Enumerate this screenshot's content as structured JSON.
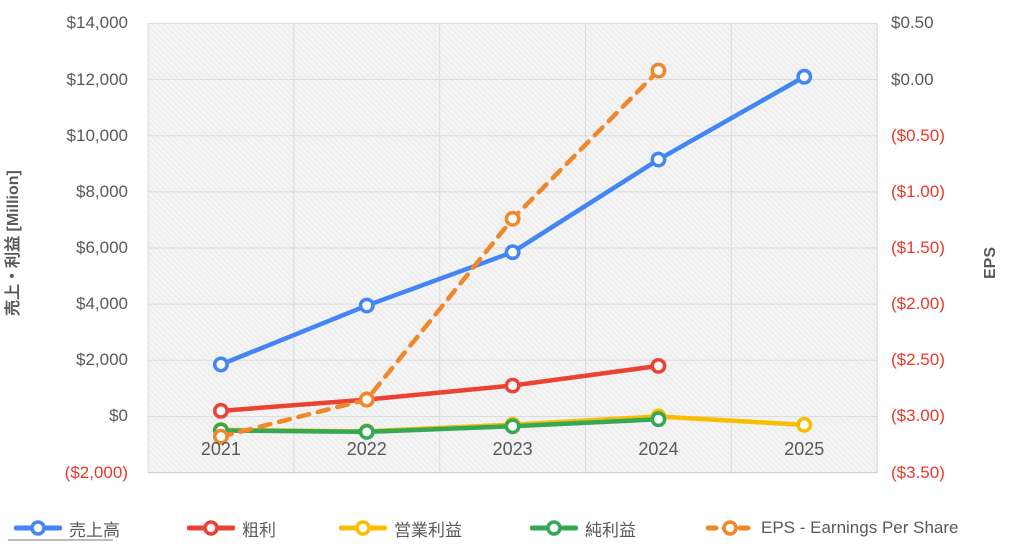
{
  "left_axis": {
    "title": "売上・利益 [Million]",
    "ticks": [
      "$14,000",
      "$12,000",
      "$10,000",
      "$8,000",
      "$6,000",
      "$4,000",
      "$2,000",
      "$0",
      "($2,000)"
    ],
    "range": [
      14000,
      -2000
    ],
    "tick_color": "#595959",
    "negative_color": "#e8392e"
  },
  "right_axis": {
    "title": "EPS",
    "ticks": [
      "$0.50",
      "$0.00",
      "($0.50)",
      "($1.00)",
      "($1.50)",
      "($2.00)",
      "($2.50)",
      "($3.00)",
      "($3.50)"
    ],
    "range": [
      0.5,
      -3.5
    ]
  },
  "x_axis": {
    "labels": [
      "2021",
      "2022",
      "2023",
      "2024",
      "2025"
    ]
  },
  "legend": {
    "items": [
      {
        "label": "売上高",
        "color": "#4285F4",
        "dashed": false
      },
      {
        "label": "粗利",
        "color": "#EA4335",
        "dashed": false
      },
      {
        "label": "営業利益",
        "color": "#FBBC04",
        "dashed": false
      },
      {
        "label": "純利益",
        "color": "#34A853",
        "dashed": false
      },
      {
        "label": "EPS - Earnings Per Share",
        "color": "#F0882B",
        "dashed": true
      }
    ],
    "item_positions": [
      14,
      187,
      339,
      530,
      706
    ]
  },
  "chart_data": {
    "type": "line",
    "categories": [
      "2021",
      "2022",
      "2023",
      "2024",
      "2025"
    ],
    "series": [
      {
        "name": "売上高",
        "axis": "left",
        "color": "#4285F4",
        "dashed": false,
        "values": [
          1850,
          3950,
          5850,
          9150,
          12100
        ]
      },
      {
        "name": "粗利",
        "axis": "left",
        "color": "#EA4335",
        "dashed": false,
        "values": [
          200,
          600,
          1100,
          1800,
          null
        ]
      },
      {
        "name": "営業利益",
        "axis": "left",
        "color": "#FBBC04",
        "dashed": false,
        "values": [
          -480,
          -530,
          -290,
          0,
          -300
        ]
      },
      {
        "name": "純利益",
        "axis": "left",
        "color": "#34A853",
        "dashed": false,
        "values": [
          -500,
          -550,
          -350,
          -100,
          null
        ]
      },
      {
        "name": "EPS - Earnings Per Share",
        "axis": "right",
        "color": "#F0882B",
        "dashed": true,
        "values": [
          -3.18,
          -2.85,
          -1.24,
          0.08,
          null
        ]
      }
    ],
    "left_ylim": [
      -2000,
      14000
    ],
    "right_ylim": [
      -3.5,
      0.5
    ],
    "xlabel": "",
    "ylabel_left": "売上・利益 [Million]",
    "ylabel_right": "EPS",
    "grid": true,
    "legend_position": "bottom"
  }
}
